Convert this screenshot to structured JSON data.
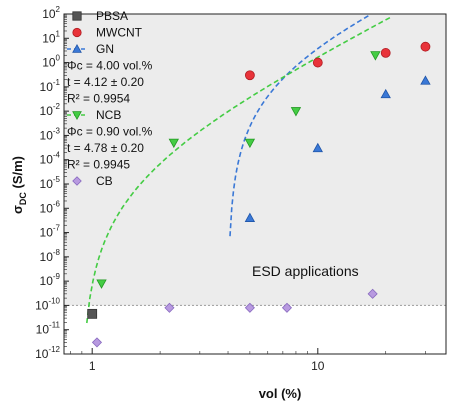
{
  "chart_data": {
    "type": "scatter",
    "xlabel": "vol (%)",
    "ylabel": "σDC (S/m)",
    "x_scale": "log",
    "y_scale": "log",
    "xlim": [
      0.75,
      37
    ],
    "ylim": [
      1e-12,
      100
    ],
    "x_ticks": [
      {
        "value": 1,
        "label": "1"
      },
      {
        "value": 10,
        "label": "10"
      }
    ],
    "y_tick_exponents": [
      2,
      1,
      0,
      -1,
      -2,
      -3,
      -4,
      -5,
      -6,
      -7,
      -8,
      -9,
      -10,
      -11,
      -12
    ],
    "y_tick_base": "10",
    "grid": false,
    "shaded_region": {
      "y_from": 1e-10,
      "y_to": 100,
      "color": "#ececec"
    },
    "threshold_line": {
      "y": 1e-10,
      "style": "dotted",
      "color": "#999999"
    },
    "annotation": "ESD applications",
    "legend_position": "top-left",
    "series": [
      {
        "name": "PBSA",
        "marker": "square",
        "color": "#555555",
        "edge": "#333333",
        "x": [
          1.0
        ],
        "y": [
          4.5e-11
        ]
      },
      {
        "name": "MWCNT",
        "marker": "circle",
        "color": "#e8333a",
        "edge": "#b01c22",
        "x": [
          5,
          10,
          20,
          30
        ],
        "y": [
          0.3,
          1.0,
          2.5,
          4.5
        ]
      },
      {
        "name": "GN",
        "marker": "triangle-up",
        "color": "#3a78d6",
        "edge": "#1f55a8",
        "x": [
          5,
          10,
          20,
          30
        ],
        "y": [
          4e-07,
          0.0003,
          0.05,
          0.18
        ]
      },
      {
        "name": "NCB",
        "marker": "triangle-down",
        "color": "#44cc44",
        "edge": "#229922",
        "x": [
          1.1,
          2.3,
          5,
          8,
          18
        ],
        "y": [
          8e-10,
          0.0005,
          0.0005,
          0.01,
          2.0
        ]
      },
      {
        "name": "CB",
        "marker": "diamond",
        "color": "#b89ae0",
        "edge": "#8a6cc0",
        "x": [
          1.05,
          2.2,
          5,
          7.3,
          17.5
        ],
        "y": [
          3e-12,
          8e-11,
          8e-11,
          8e-11,
          3e-10
        ]
      }
    ],
    "fits": [
      {
        "name": "GN",
        "color": "#3a78d6",
        "style": "dashed",
        "phi_c": "Φc = 4.00 vol.%",
        "t": "t = 4.12 ± 0.20",
        "r2": "R² = 0.9954",
        "phi_c_value": 4.0,
        "t_value": 4.12,
        "sigma0": 345000.0
      },
      {
        "name": "NCB",
        "color": "#44cc44",
        "style": "dashed",
        "phi_c": "Φc = 0.90 vol.%",
        "t": "t = 4.78 ± 0.20",
        "r2": "R² = 0.9945",
        "phi_c_value": 0.9,
        "t_value": 4.78,
        "sigma0": 150000.0
      }
    ]
  }
}
